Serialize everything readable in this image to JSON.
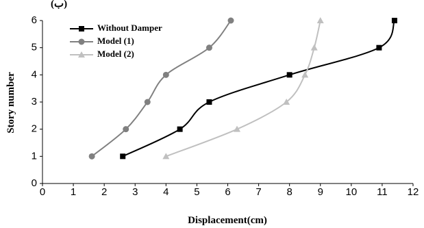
{
  "chart_data": {
    "type": "line",
    "annotation": "(ب)",
    "x_label": "Displacement(cm)",
    "y_label": "Story number",
    "xlim": [
      0,
      12
    ],
    "xticks": [
      0,
      1,
      2,
      3,
      4,
      5,
      6,
      7,
      8,
      9,
      10,
      11,
      12
    ],
    "ylim": [
      0,
      6
    ],
    "yticks": [
      0,
      1,
      2,
      3,
      4,
      5,
      6
    ],
    "smooth": true,
    "grid": false,
    "legend": "top-left",
    "series": [
      {
        "name": "Without Damper",
        "color": "#000000",
        "marker": "square",
        "x": [
          2.6,
          4.45,
          5.4,
          8,
          10.9,
          11.4
        ],
        "values": [
          1,
          2,
          3,
          4,
          5,
          6
        ]
      },
      {
        "name": "Model (1)",
        "color": "#808080",
        "marker": "circle",
        "x": [
          1.6,
          2.7,
          3.4,
          4,
          5.4,
          6.1
        ],
        "values": [
          1,
          2,
          3,
          4,
          5,
          6
        ]
      },
      {
        "name": "Model (2)",
        "color": "#c0c0c0",
        "marker": "triangle",
        "x": [
          4,
          6.3,
          7.9,
          8.5,
          8.8,
          9
        ],
        "values": [
          1,
          2,
          3,
          4,
          5,
          6
        ]
      }
    ]
  }
}
